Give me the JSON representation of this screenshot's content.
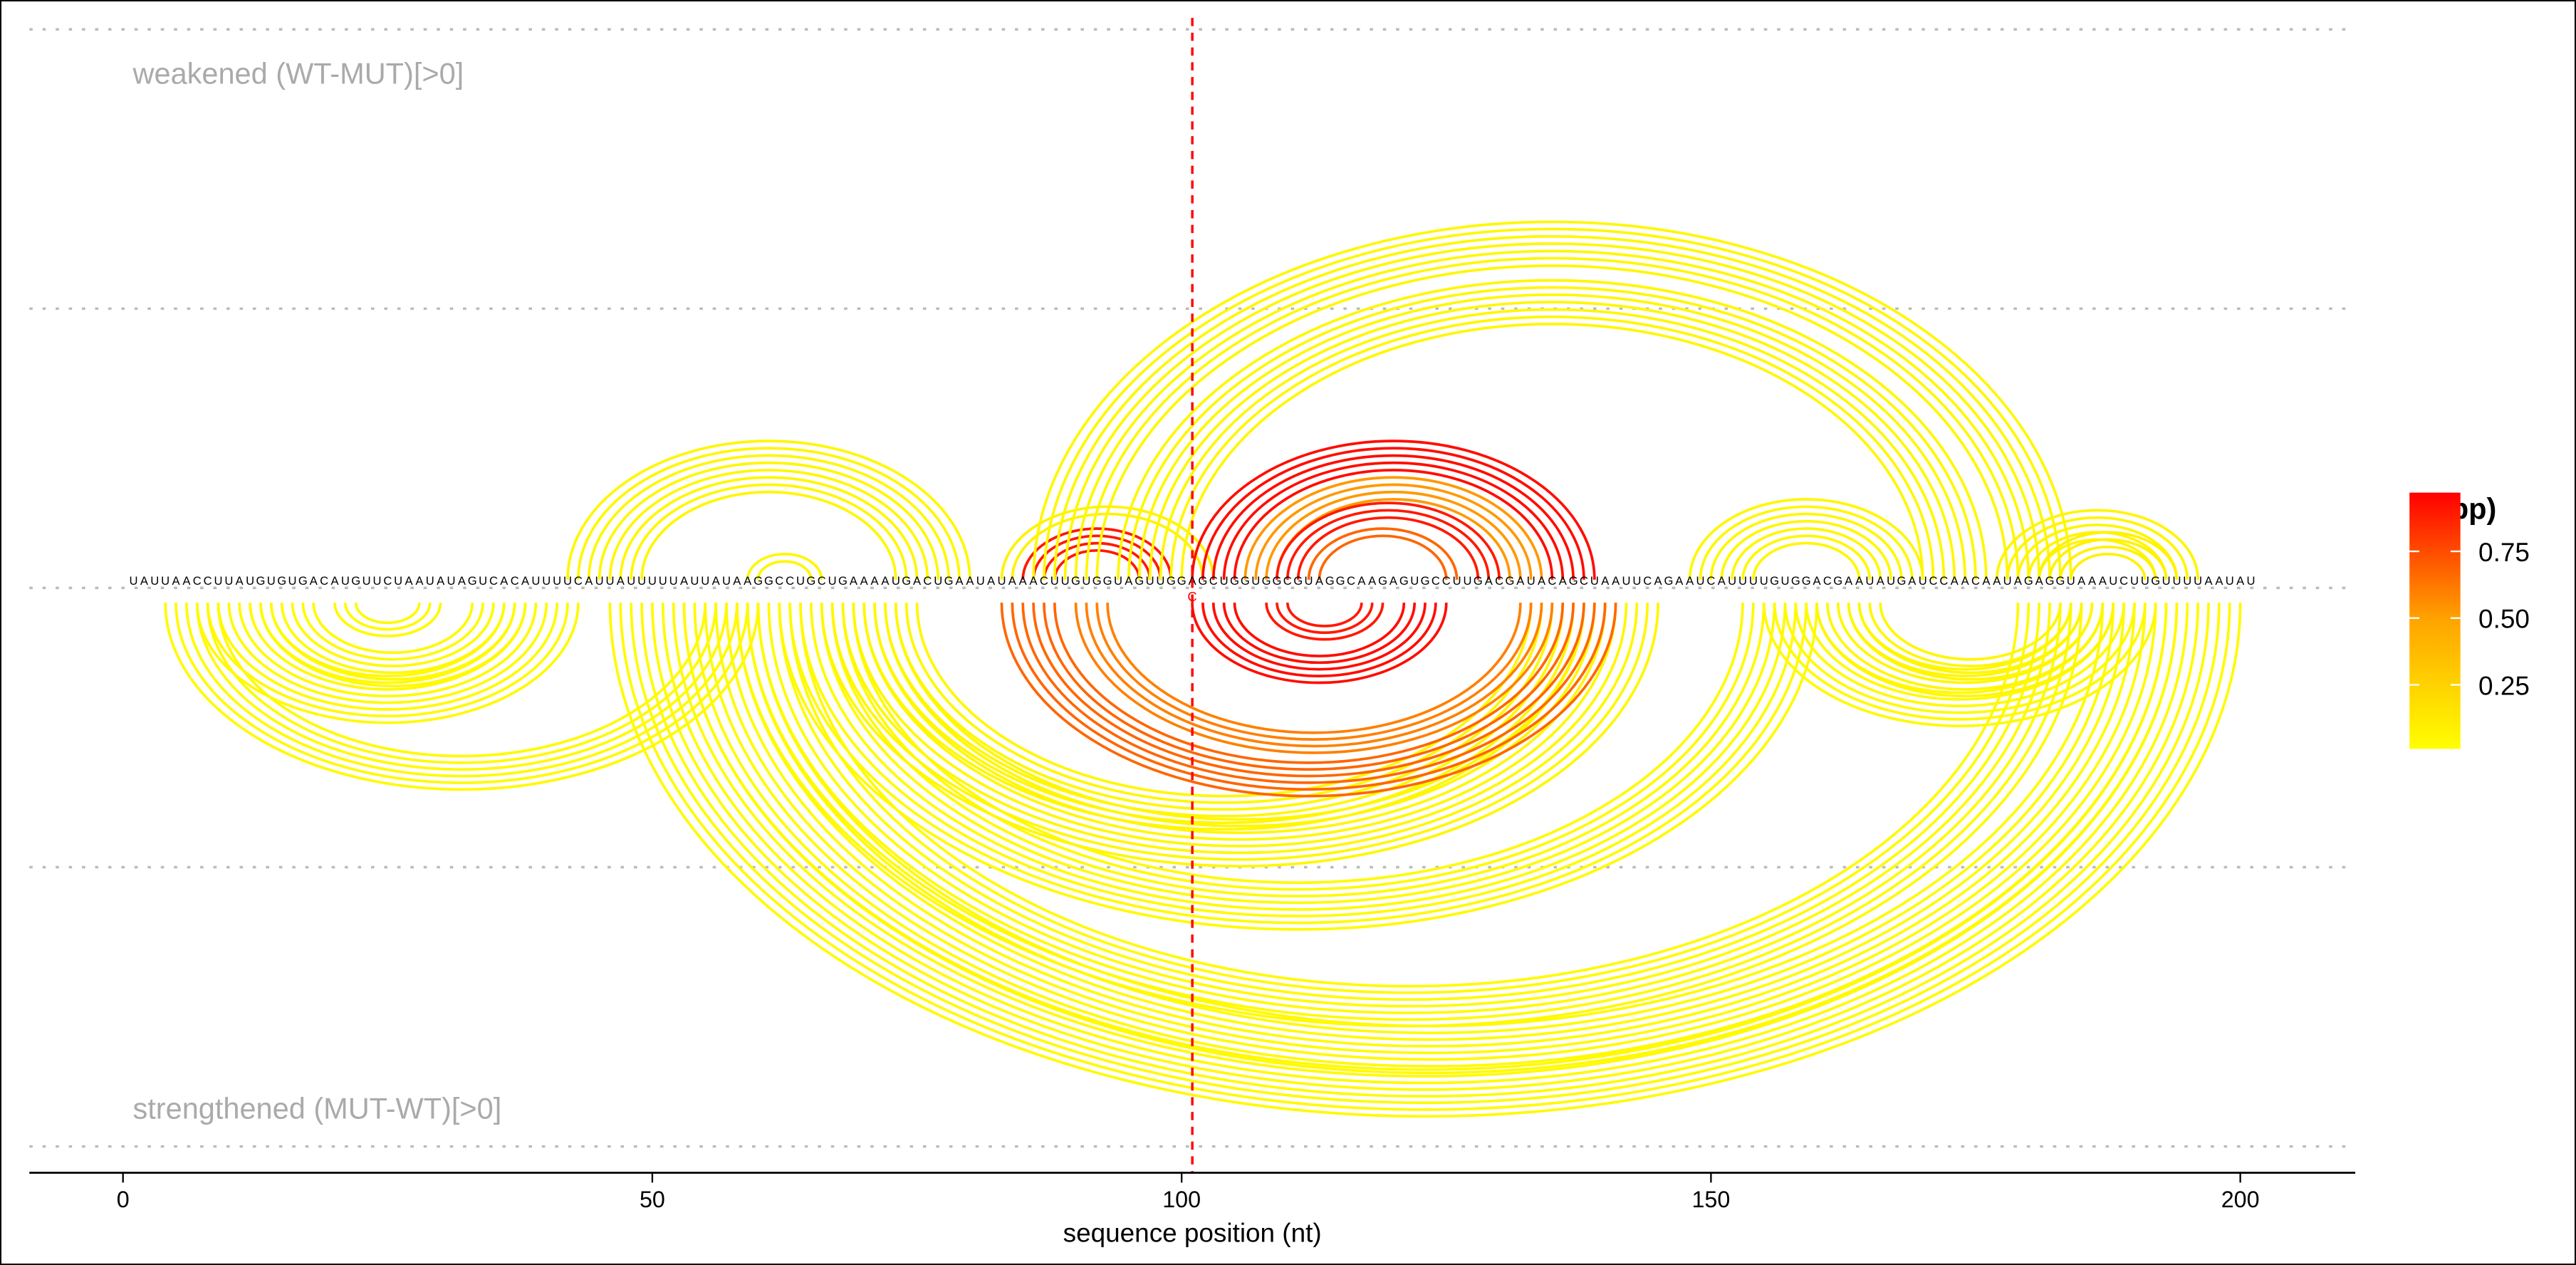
{
  "chart_data": {
    "type": "arc",
    "sequence": "UAUUAACCUUAUGUGUGACAUGUUCUAAUAUAGUCACAUUUUCAUUAUUUUUAUUAUAAGGCCUGCUGAAAAUGACUGAAUAUAAACUUGUGGUAGUUGGAGCUGGUGGCGUAGGCAAGAGUGCCUUGACGAUACAGCUAAUUCAGAAUCAUUUUGUGGACGAAUAUGAUCCAACAAUAGAGGUAAAUCUUGUUUUAAUAU",
    "mutation": {
      "position": 101,
      "wt": "A",
      "mut": "C"
    },
    "xlabel": "sequence position (nt)",
    "xlim": [
      -10,
      211
    ],
    "xticks": [
      0,
      50,
      100,
      150,
      200
    ],
    "xtick_labels": [
      "0",
      "50",
      "100",
      "150",
      "200"
    ],
    "top_label": "weakened (WT-MUT)[>0]",
    "bottom_label": "strengthened (MUT-WT)[>0]",
    "legend": {
      "title": "Pr(bp)",
      "ticks": [
        0.25,
        0.5,
        0.75
      ],
      "tick_labels": [
        "0.25",
        "0.50",
        "0.75"
      ],
      "range": [
        0.01,
        0.97
      ],
      "color_low": "#FFFF00",
      "color_high": "#FF0000",
      "placement": "right"
    },
    "helices_format": "i, j, stacked pairs (i+k : j-k), Pr(bp)",
    "top_helices": [
      [
        42,
        80,
        8,
        0.03
      ],
      [
        59,
        66,
        2,
        0.03
      ],
      [
        83,
        103,
        2,
        0.05
      ],
      [
        85,
        99,
        4,
        0.9
      ],
      [
        101,
        139,
        5,
        0.95
      ],
      [
        106,
        134,
        4,
        0.4
      ],
      [
        109,
        130,
        3,
        0.9
      ],
      [
        112,
        126,
        2,
        0.6
      ],
      [
        86,
        184,
        7,
        0.03
      ],
      [
        94,
        176,
        7,
        0.03
      ],
      [
        148,
        170,
        7,
        0.03
      ],
      [
        177,
        196,
        5,
        0.04
      ],
      [
        181,
        194,
        4,
        0.05
      ]
    ],
    "bottom_helices": [
      [
        4,
        60,
        6,
        0.02
      ],
      [
        7,
        43,
        8,
        0.02
      ],
      [
        13,
        38,
        6,
        0.02
      ],
      [
        20,
        30,
        3,
        0.02
      ],
      [
        46,
        200,
        8,
        0.02
      ],
      [
        53,
        194,
        8,
        0.02
      ],
      [
        58,
        185,
        7,
        0.02
      ],
      [
        62,
        160,
        8,
        0.02
      ],
      [
        66,
        145,
        8,
        0.03
      ],
      [
        70,
        138,
        6,
        0.03
      ],
      [
        83,
        141,
        6,
        0.6
      ],
      [
        90,
        135,
        4,
        0.5
      ],
      [
        101,
        125,
        5,
        0.95
      ],
      [
        108,
        119,
        3,
        0.9
      ],
      [
        155,
        192,
        6,
        0.02
      ],
      [
        160,
        188,
        5,
        0.03
      ],
      [
        163,
        186,
        4,
        0.03
      ]
    ]
  }
}
